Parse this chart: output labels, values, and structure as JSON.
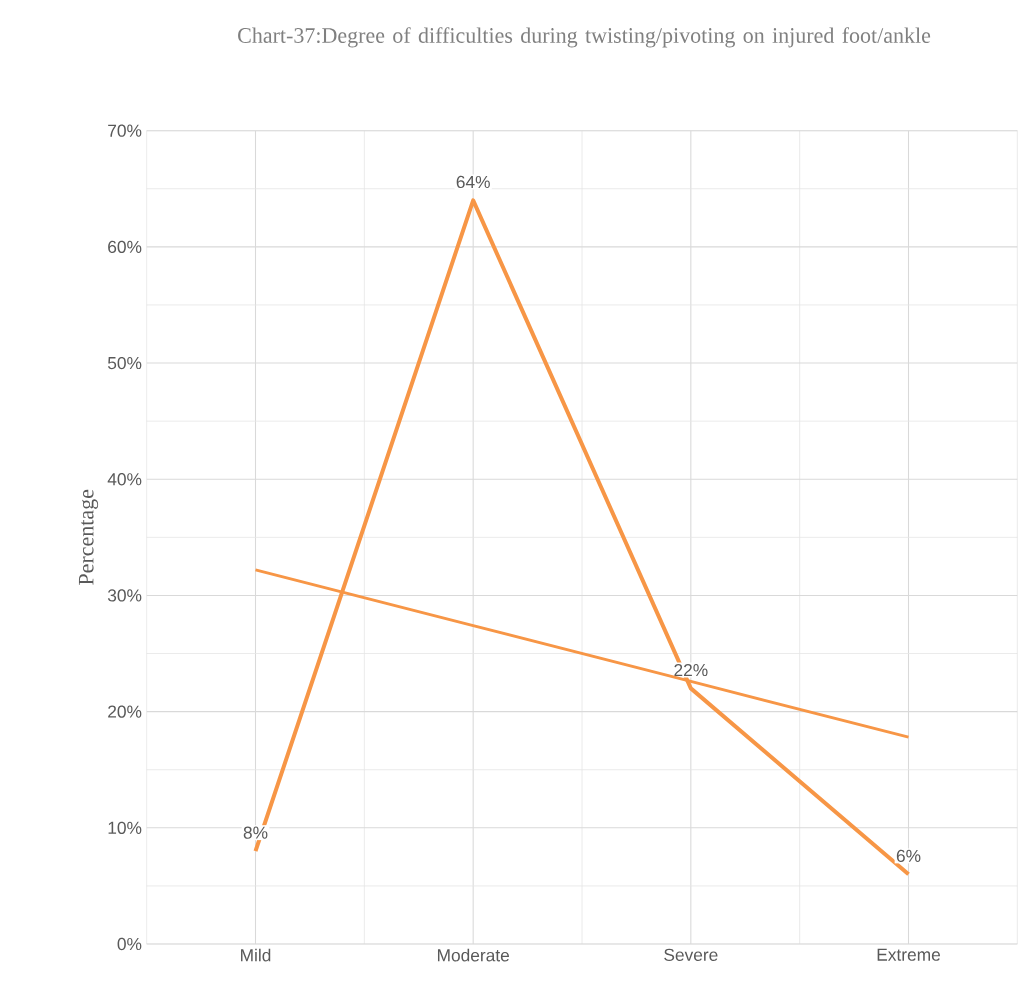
{
  "chart_data": {
    "type": "line",
    "title": "Chart-37:Degree of difficulties during twisting/pivoting on injured foot/ankle",
    "ylabel": "Percentage",
    "categories": [
      "Mild",
      "Moderate",
      "Severe",
      "Extreme"
    ],
    "series": [
      {
        "color": "#f79646",
        "values": [
          8,
          64,
          22,
          6
        ],
        "value_labels": [
          "8%",
          "64%",
          "22%",
          "6%"
        ]
      },
      {
        "type": "line",
        "color": "#f79646",
        "values": [
          32.2,
          27.4,
          22.6,
          17.8
        ]
      }
    ],
    "ylim": [
      0,
      70
    ],
    "yticks": [
      {
        "value": 0,
        "label": "0%"
      },
      {
        "value": 10,
        "label": "10%"
      },
      {
        "value": 20,
        "label": "20%"
      },
      {
        "value": 30,
        "label": "30%"
      },
      {
        "value": 40,
        "label": "40%"
      },
      {
        "value": 50,
        "label": "50%"
      },
      {
        "value": 60,
        "label": "60%"
      },
      {
        "value": 70,
        "label": "70%"
      }
    ],
    "grid": true,
    "marker": "none",
    "line_style": "solid"
  }
}
